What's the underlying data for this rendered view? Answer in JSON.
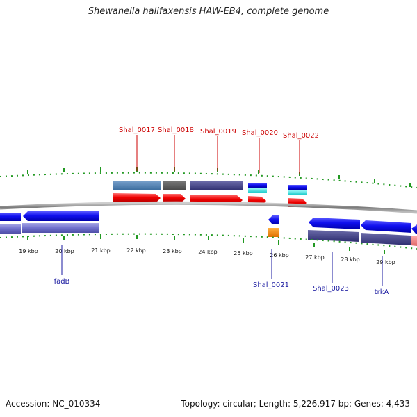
{
  "title": "Shewanella halifaxensis HAW-EB4, complete genome",
  "footer": {
    "accession": "Accession: NC_010334",
    "summary": "Topology: circular; Length: 5,226,917 bp; Genes: 4,433"
  },
  "scale_labels": [
    "19 kbp",
    "20 kbp",
    "21 kbp",
    "22 kbp",
    "23 kbp",
    "24 kbp",
    "25 kbp",
    "26 kbp",
    "27 kbp",
    "28 kbp",
    "29 kbp"
  ],
  "top_gene_labels": [
    "Shal_0017",
    "Shal_0018",
    "Shal_0019",
    "Shal_0020",
    "Shal_0022"
  ],
  "bottom_gene_labels": [
    "fadB",
    "Shal_0021",
    "Shal_0023",
    "trkA"
  ],
  "colors": {
    "forward_cds": "#ee0000",
    "reverse_cds": "#1010ee",
    "reverse_gene": "#7070cc",
    "tick": "#229922",
    "backbone": "#888888",
    "top_label": "#cc0000",
    "bottom_label": "#1a1aa0"
  }
}
